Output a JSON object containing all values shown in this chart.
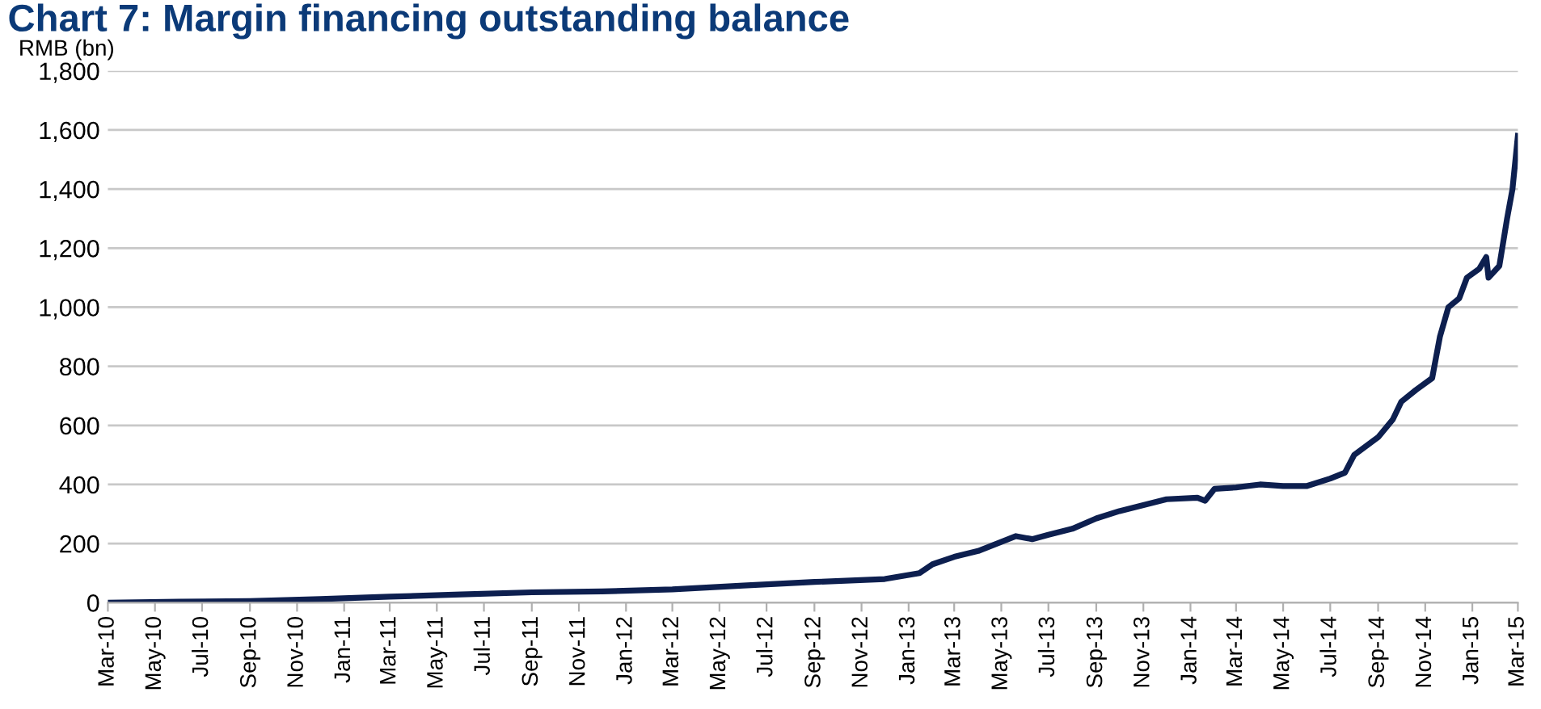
{
  "chart_data": {
    "type": "line",
    "title": "Chart 7: Margin financing outstanding balance",
    "ylabel": "RMB (bn)",
    "x": [
      "2010-03",
      "2010-06",
      "2010-09",
      "2010-12",
      "2011-03",
      "2011-06",
      "2011-09",
      "2011-12",
      "2012-03",
      "2012-06",
      "2012-09",
      "2012-12",
      "2013-01-15",
      "2013-02",
      "2013-03",
      "2013-04",
      "2013-05-20",
      "2013-06-10",
      "2013-07",
      "2013-08",
      "2013-09",
      "2013-10",
      "2013-11",
      "2013-12",
      "2014-01-10",
      "2014-01-20",
      "2014-02",
      "2014-03",
      "2014-04",
      "2014-05",
      "2014-06",
      "2014-07",
      "2014-07-20",
      "2014-08",
      "2014-09",
      "2014-09-20",
      "2014-10",
      "2014-10-20",
      "2014-11-10",
      "2014-11-20",
      "2014-12",
      "2014-12-15",
      "2014-12-25",
      "2015-01-10",
      "2015-01-19",
      "2015-01-22",
      "2015-02-05",
      "2015-02-15",
      "2015-02-22",
      "2015-03"
    ],
    "series": [
      {
        "color": "#0d1f4f",
        "values": [
          0,
          3,
          5,
          12,
          20,
          28,
          35,
          38,
          45,
          58,
          70,
          80,
          100,
          130,
          155,
          175,
          225,
          215,
          230,
          250,
          285,
          310,
          330,
          350,
          355,
          345,
          385,
          390,
          400,
          395,
          395,
          420,
          440,
          500,
          560,
          620,
          680,
          720,
          760,
          900,
          1000,
          1030,
          1100,
          1130,
          1170,
          1100,
          1140,
          1300,
          1400,
          1580
        ]
      }
    ],
    "ylim": [
      0,
      1800
    ],
    "yticks": [
      0,
      {
        "value": 200,
        "label": "200"
      },
      {
        "value": 400,
        "label": "400"
      },
      {
        "value": 600,
        "label": "600"
      },
      {
        "value": 800,
        "label": "800"
      },
      {
        "value": 1000,
        "label": "1,000"
      },
      {
        "value": 1200,
        "label": "1,200"
      },
      {
        "value": 1400,
        "label": "1,400"
      },
      {
        "value": 1600,
        "label": "1,600"
      },
      {
        "value": 1800,
        "label": "1,800"
      }
    ],
    "xlim": [
      "2010-03",
      "2015-03"
    ],
    "xticks": [
      {
        "value": "2010-03",
        "label": "Mar-10"
      },
      {
        "value": "2010-05",
        "label": "May-10"
      },
      {
        "value": "2010-07",
        "label": "Jul-10"
      },
      {
        "value": "2010-09",
        "label": "Sep-10"
      },
      {
        "value": "2010-11",
        "label": "Nov-10"
      },
      {
        "value": "2011-01",
        "label": "Jan-11"
      },
      {
        "value": "2011-03",
        "label": "Mar-11"
      },
      {
        "value": "2011-05",
        "label": "May-11"
      },
      {
        "value": "2011-07",
        "label": "Jul-11"
      },
      {
        "value": "2011-09",
        "label": "Sep-11"
      },
      {
        "value": "2011-11",
        "label": "Nov-11"
      },
      {
        "value": "2012-01",
        "label": "Jan-12"
      },
      {
        "value": "2012-03",
        "label": "Mar-12"
      },
      {
        "value": "2012-05",
        "label": "May-12"
      },
      {
        "value": "2012-07",
        "label": "Jul-12"
      },
      {
        "value": "2012-09",
        "label": "Sep-12"
      },
      {
        "value": "2012-11",
        "label": "Nov-12"
      },
      {
        "value": "2013-01",
        "label": "Jan-13"
      },
      {
        "value": "2013-03",
        "label": "Mar-13"
      },
      {
        "value": "2013-05",
        "label": "May-13"
      },
      {
        "value": "2013-07",
        "label": "Jul-13"
      },
      {
        "value": "2013-09",
        "label": "Sep-13"
      },
      {
        "value": "2013-11",
        "label": "Nov-13"
      },
      {
        "value": "2014-01",
        "label": "Jan-14"
      },
      {
        "value": "2014-03",
        "label": "Mar-14"
      },
      {
        "value": "2014-05",
        "label": "May-14"
      },
      {
        "value": "2014-07",
        "label": "Jul-14"
      },
      {
        "value": "2014-09",
        "label": "Sep-14"
      },
      {
        "value": "2014-11",
        "label": "Nov-14"
      },
      {
        "value": "2015-01",
        "label": "Jan-15"
      },
      {
        "value": "2015-03",
        "label": "Mar-15"
      }
    ],
    "grid": "y",
    "legend": false,
    "marker": "none",
    "line_style": "solid"
  }
}
